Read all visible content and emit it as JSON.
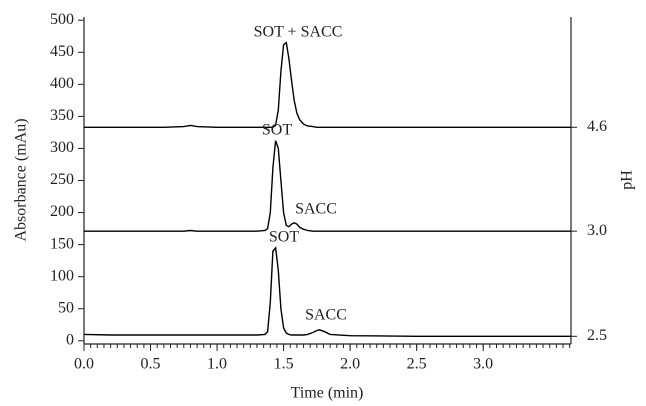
{
  "chart_data": {
    "type": "line",
    "y_label": "Absorbance (mAu)",
    "y2_label": "pH",
    "x_label": "Time (min)",
    "x": [
      0,
      0.2,
      0.4,
      0.6,
      0.75,
      0.8,
      0.85,
      1.0,
      1.2,
      1.3,
      1.36,
      1.38,
      1.4,
      1.42,
      1.44,
      1.46,
      1.48,
      1.5,
      1.52,
      1.54,
      1.56,
      1.58,
      1.6,
      1.62,
      1.65,
      1.68,
      1.72,
      1.75,
      1.77,
      1.8,
      1.85,
      2.0,
      2.5,
      3.0,
      3.5,
      3.66
    ],
    "series": [
      {
        "name": "4.6",
        "color": "#000000",
        "values": [
          333,
          333,
          333,
          333,
          334,
          336,
          334,
          333,
          333,
          333,
          333,
          333,
          333,
          333,
          336,
          360,
          420,
          462,
          465,
          440,
          405,
          375,
          355,
          345,
          338,
          335,
          334,
          333,
          333,
          333,
          333,
          333,
          333,
          333,
          333,
          333
        ]
      },
      {
        "name": "3.0",
        "color": "#000000",
        "values": [
          171,
          171,
          171,
          171,
          171,
          172,
          171,
          171,
          171,
          171,
          172,
          175,
          200,
          270,
          312,
          300,
          250,
          200,
          180,
          178,
          182,
          184,
          182,
          177,
          174,
          172,
          171,
          171,
          171,
          171,
          171,
          171,
          171,
          171,
          171,
          171
        ]
      },
      {
        "name": "2.5",
        "color": "#000000",
        "values": [
          10,
          9,
          9,
          9,
          9,
          9,
          9,
          9,
          9,
          9,
          10,
          14,
          60,
          140,
          145,
          110,
          50,
          20,
          12,
          10,
          9,
          9,
          9,
          9,
          9,
          10,
          13,
          16,
          17,
          15,
          10,
          8,
          7,
          7,
          7,
          7
        ]
      }
    ],
    "annotations": [
      "SOT + SACC",
      "SOT",
      "SACC",
      "SOT",
      "SACC"
    ],
    "xlim": [
      0,
      3.66
    ],
    "xticks": [
      {
        "value": 0,
        "label": "0.0"
      },
      0.5,
      {
        "value": 1,
        "label": "1.0"
      },
      1.5,
      {
        "value": 2,
        "label": "2.0"
      },
      2.5,
      {
        "value": 3,
        "label": "3.0"
      }
    ],
    "x_minor_step": 0.05,
    "ylim": [
      -5,
      505
    ],
    "yticks": [
      0,
      50,
      100,
      150,
      200,
      250,
      300,
      350,
      400,
      450,
      500
    ]
  }
}
